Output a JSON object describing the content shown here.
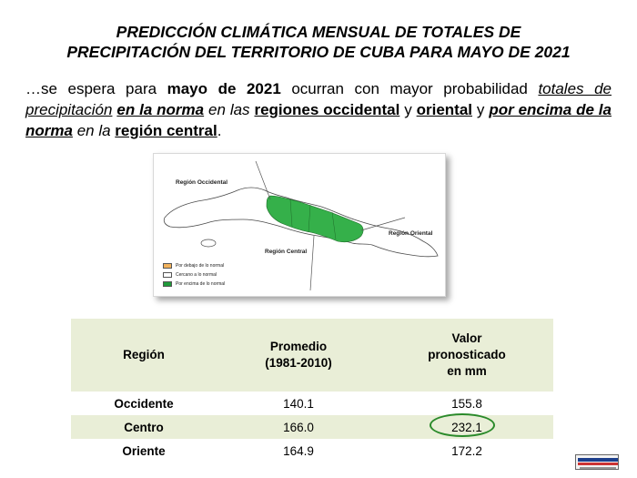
{
  "title": {
    "line1": "PREDICCIÓN CLIMÁTICA  MENSUAL DE  TOTALES DE",
    "line2": "PRECIPITACIÓN DEL TERRITORIO DE CUBA PARA MAYO DE 2021"
  },
  "intro": {
    "t1": "…se espera para ",
    "t2": "mayo de 2021",
    "t3": " ocurran con mayor probabilidad ",
    "t4": "totales de precipitación",
    "t5": " ",
    "t6": "en la norma",
    "t7": " en las ",
    "t8": "regiones occidental",
    "t9": " y ",
    "t10": "oriental",
    "t11": " y ",
    "t12": "por encima de la norma",
    "t13": " en la ",
    "t14": "región central",
    "t15": "."
  },
  "map": {
    "labels": {
      "occidental": "Región Occidental",
      "central": "Región Central",
      "oriental": "Región Oriental"
    },
    "legend": [
      {
        "label": "Por debajo de lo normal",
        "color": "#f2b25c"
      },
      {
        "label": "Cercano a lo normal",
        "color": "#ffffff"
      },
      {
        "label": "Por encima de lo normal",
        "color": "#1f9a3a"
      }
    ],
    "colors": {
      "normal": "#ffffff",
      "above": "#35b04a",
      "outline": "#4a4a4a"
    }
  },
  "table": {
    "headers": {
      "region": "Región",
      "promedio_l1": "Promedio",
      "promedio_l2": "(1981-2010)",
      "valor_l1": "Valor",
      "valor_l2": "pronosticado",
      "valor_l3": "en mm"
    },
    "rows": [
      {
        "region": "Occidente",
        "promedio": "140.1",
        "valor": "155.8"
      },
      {
        "region": "Centro",
        "promedio": "166.0",
        "valor": "232.1"
      },
      {
        "region": "Oriente",
        "promedio": "164.9",
        "valor": "172.2"
      }
    ]
  },
  "colors": {
    "header_bg": "#e9eed7",
    "highlight": "#2a8a2a"
  },
  "icons": {
    "logo": "institution-logo"
  }
}
